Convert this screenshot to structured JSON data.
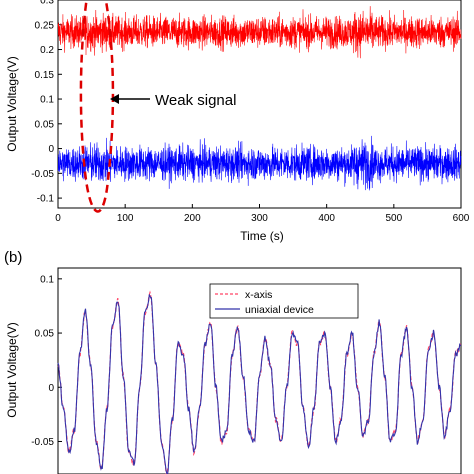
{
  "chart_data": [
    {
      "type": "line",
      "title": "",
      "xlabel": "Time (s)",
      "ylabel": "Output Voltage(V)",
      "xlim": [
        0,
        600
      ],
      "ylim": [
        -0.12,
        0.3
      ],
      "x_ticks": [
        0,
        100,
        200,
        300,
        400,
        500,
        600
      ],
      "y_ticks": [
        -0.1,
        -0.05,
        0,
        0.05,
        0.1,
        0.15,
        0.2,
        0.25,
        0.3
      ],
      "y_tick_labels": [
        "-0.1",
        "-0.05",
        "0",
        "0.05",
        "0.1",
        "0.15",
        "0.2",
        "0.25",
        "0.3"
      ],
      "series": [
        {
          "color": "#ff0000",
          "mean": 0.235,
          "amplitude_range": [
            0.17,
            0.3
          ]
        },
        {
          "color": "#0000ff",
          "mean": -0.03,
          "amplitude_range": [
            -0.1,
            0.04
          ]
        }
      ],
      "annotation": {
        "text": "Weak signal",
        "highlight_x_range": [
          40,
          80
        ],
        "highlight_color": "#dd0000"
      },
      "grid": false
    },
    {
      "type": "line",
      "panel_label": "(b)",
      "title": "",
      "xlabel": "",
      "ylabel": "Output Voltage(V)",
      "ylim": [
        -0.08,
        0.11
      ],
      "y_ticks": [
        -0.05,
        0,
        0.05,
        0.1
      ],
      "y_tick_labels": [
        "-0.05",
        "0",
        "0.05",
        "0.1"
      ],
      "legend_position": "top-right",
      "grid": false,
      "series": [
        {
          "name": "x-axis",
          "color": "#ff4466",
          "linestyle": "dashed"
        },
        {
          "name": "uniaxial device",
          "color": "#3333aa",
          "linestyle": "solid"
        }
      ],
      "waveform": {
        "description_note": "",
        "x": [
          0,
          4,
          8,
          12,
          16,
          20,
          24,
          28,
          32,
          36,
          40,
          44,
          48,
          52,
          56,
          60,
          64,
          68,
          72,
          76,
          80,
          84,
          88,
          92,
          96,
          100,
          104,
          108,
          112,
          116,
          120,
          124,
          128,
          132,
          136,
          140,
          144,
          148,
          152,
          156,
          160,
          164,
          168,
          172,
          176,
          180,
          184,
          188,
          192,
          196,
          200,
          204,
          208,
          212,
          216,
          220,
          224,
          228,
          232,
          236,
          240,
          244,
          248,
          252,
          256,
          260,
          264,
          268,
          272,
          276,
          280,
          284,
          288,
          292,
          296
        ],
        "y": [
          0.02,
          -0.02,
          -0.06,
          -0.04,
          0.03,
          0.07,
          0.02,
          -0.05,
          -0.075,
          -0.02,
          0.055,
          0.08,
          0.01,
          -0.06,
          -0.07,
          0.0,
          0.07,
          0.085,
          0.02,
          -0.05,
          -0.08,
          -0.03,
          0.04,
          0.03,
          -0.02,
          -0.06,
          -0.02,
          0.04,
          0.06,
          0.0,
          -0.05,
          -0.04,
          0.03,
          0.055,
          0.01,
          -0.04,
          -0.05,
          0.01,
          0.045,
          0.02,
          -0.03,
          -0.05,
          0.0,
          0.05,
          0.04,
          -0.02,
          -0.055,
          -0.02,
          0.04,
          0.05,
          0.0,
          -0.05,
          -0.03,
          0.03,
          0.05,
          0.0,
          -0.045,
          -0.03,
          0.03,
          0.06,
          0.01,
          -0.05,
          -0.04,
          0.03,
          0.055,
          0.0,
          -0.05,
          -0.03,
          0.035,
          0.05,
          0.0,
          -0.045,
          -0.02,
          0.03,
          0.04
        ]
      }
    }
  ]
}
